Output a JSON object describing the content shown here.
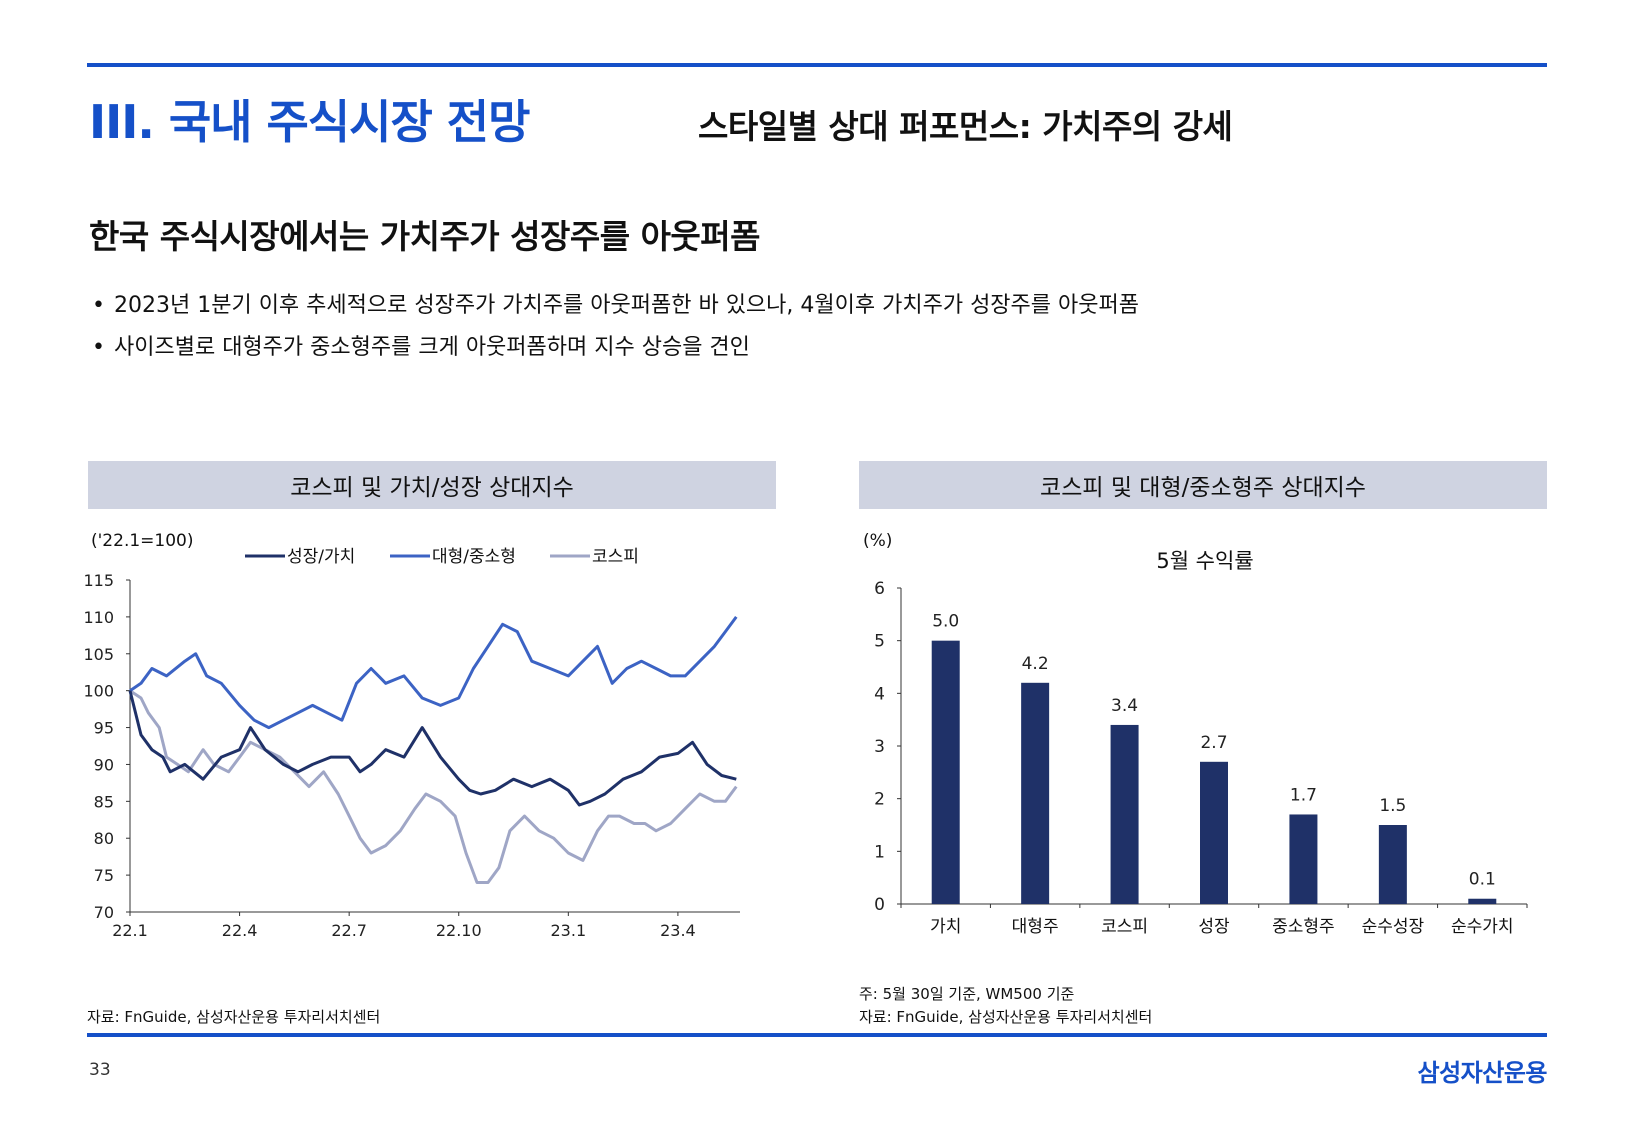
{
  "header": {
    "section_title": "III. 국내 주식시장 전망",
    "subtitle": "스타일별 상대 퍼포먼스: 가치주의 강세"
  },
  "headline": "한국 주식시장에서는 가치주가 성장주를 아웃퍼폼",
  "bullets": [
    "2023년 1분기 이후 추세적으로 성장주가 가치주를 아웃퍼폼한 바 있으나, 4월이후 가치주가 성장주를 아웃퍼폼",
    "사이즈별로 대형주가 중소형주를 크게 아웃퍼폼하며 지수 상승을 견인"
  ],
  "bullet_symbol": "•",
  "left_panel": {
    "header": "코스피 및 가치/성장 상대지수",
    "source": "자료: FnGuide, 삼성자산운용 투자리서치센터"
  },
  "right_panel": {
    "header": "코스피 및 대형/중소형주 상대지수",
    "note": "주: 5월 30일 기준, WM500 기준",
    "source": "자료: FnGuide, 삼성자산운용 투자리서치센터"
  },
  "footer": {
    "page_number": "33",
    "brand": "삼성자산운용"
  },
  "colors": {
    "accent": "#1550c8",
    "navy": "#1f3168",
    "blue": "#3c63c4",
    "gray_blue": "#9fa6c6",
    "panel_header_bg": "#cfd3e1"
  },
  "chart_data": [
    {
      "type": "line",
      "title": "코스피 및 가치/성장 상대지수",
      "unit_label": "('22.1=100)",
      "ylim": [
        70,
        115
      ],
      "yticks": [
        70,
        75,
        80,
        85,
        90,
        95,
        100,
        105,
        110,
        115
      ],
      "x_tick_labels": [
        "22.1",
        "22.4",
        "22.7",
        "22.10",
        "23.1",
        "23.4"
      ],
      "x_tick_positions": [
        0,
        3,
        6,
        9,
        12,
        15
      ],
      "x_range": [
        0,
        16.7
      ],
      "legend_position": "top",
      "series": [
        {
          "name": "성장/가치",
          "color": "#1f3168",
          "x": [
            0,
            0.3,
            0.6,
            0.9,
            1.1,
            1.5,
            2.0,
            2.5,
            3.0,
            3.3,
            3.7,
            4.2,
            4.6,
            5.0,
            5.5,
            6.0,
            6.3,
            6.6,
            7.0,
            7.5,
            8.0,
            8.5,
            9.0,
            9.3,
            9.6,
            10.0,
            10.5,
            11.0,
            11.5,
            12.0,
            12.3,
            12.6,
            13.0,
            13.5,
            14.0,
            14.5,
            15.0,
            15.4,
            15.8,
            16.2,
            16.6
          ],
          "values": [
            100,
            94,
            92,
            91,
            89,
            90,
            88,
            91,
            92,
            95,
            92,
            90,
            89,
            90,
            91,
            91,
            89,
            90,
            92,
            91,
            95,
            91,
            88,
            86.5,
            86,
            86.5,
            88,
            87,
            88,
            86.5,
            84.5,
            85,
            86,
            88,
            89,
            91,
            91.5,
            93,
            90,
            88.5,
            88
          ]
        },
        {
          "name": "대형/중소형",
          "color": "#3c63c4",
          "x": [
            0,
            0.3,
            0.6,
            1.0,
            1.5,
            1.8,
            2.1,
            2.5,
            3.0,
            3.4,
            3.8,
            4.2,
            4.6,
            5.0,
            5.4,
            5.8,
            6.2,
            6.6,
            7.0,
            7.5,
            8.0,
            8.5,
            9.0,
            9.4,
            9.8,
            10.2,
            10.6,
            11.0,
            11.5,
            12.0,
            12.4,
            12.8,
            13.2,
            13.6,
            14.0,
            14.4,
            14.8,
            15.2,
            15.6,
            16.0,
            16.3,
            16.6
          ],
          "values": [
            100,
            101,
            103,
            102,
            104,
            105,
            102,
            101,
            98,
            96,
            95,
            96,
            97,
            98,
            97,
            96,
            101,
            103,
            101,
            102,
            99,
            98,
            99,
            103,
            106,
            109,
            108,
            104,
            103,
            102,
            104,
            106,
            101,
            103,
            104,
            103,
            102,
            102,
            104,
            106,
            108,
            110
          ]
        },
        {
          "name": "코스피",
          "color": "#9fa6c6",
          "x": [
            0,
            0.3,
            0.5,
            0.8,
            1.0,
            1.3,
            1.6,
            2.0,
            2.3,
            2.7,
            3.0,
            3.3,
            3.7,
            4.1,
            4.5,
            4.9,
            5.3,
            5.7,
            6.0,
            6.3,
            6.6,
            7.0,
            7.4,
            7.8,
            8.1,
            8.5,
            8.9,
            9.2,
            9.5,
            9.8,
            10.1,
            10.4,
            10.8,
            11.2,
            11.6,
            12.0,
            12.4,
            12.8,
            13.1,
            13.4,
            13.8,
            14.1,
            14.4,
            14.8,
            15.2,
            15.6,
            16.0,
            16.3,
            16.6
          ],
          "values": [
            100,
            99,
            97,
            95,
            91,
            90,
            89,
            92,
            90,
            89,
            91,
            93,
            92,
            91,
            89,
            87,
            89,
            86,
            83,
            80,
            78,
            79,
            81,
            84,
            86,
            85,
            83,
            78,
            74,
            74,
            76,
            81,
            83,
            81,
            80,
            78,
            77,
            81,
            83,
            83,
            82,
            82,
            81,
            82,
            84,
            86,
            85,
            85,
            87
          ]
        }
      ]
    },
    {
      "type": "bar",
      "title": "5월 수익률",
      "unit_label": "(%)",
      "categories": [
        "가치",
        "대형주",
        "코스피",
        "성장",
        "중소형주",
        "순수성장",
        "순수가치"
      ],
      "values": [
        5.0,
        4.2,
        3.4,
        2.7,
        1.7,
        1.5,
        0.1
      ],
      "value_labels": [
        "5.0",
        "4.2",
        "3.4",
        "2.7",
        "1.7",
        "1.5",
        "0.1"
      ],
      "ylim": [
        0,
        6
      ],
      "yticks": [
        0,
        1,
        2,
        3,
        4,
        5,
        6
      ],
      "color": "#1f3168"
    }
  ]
}
